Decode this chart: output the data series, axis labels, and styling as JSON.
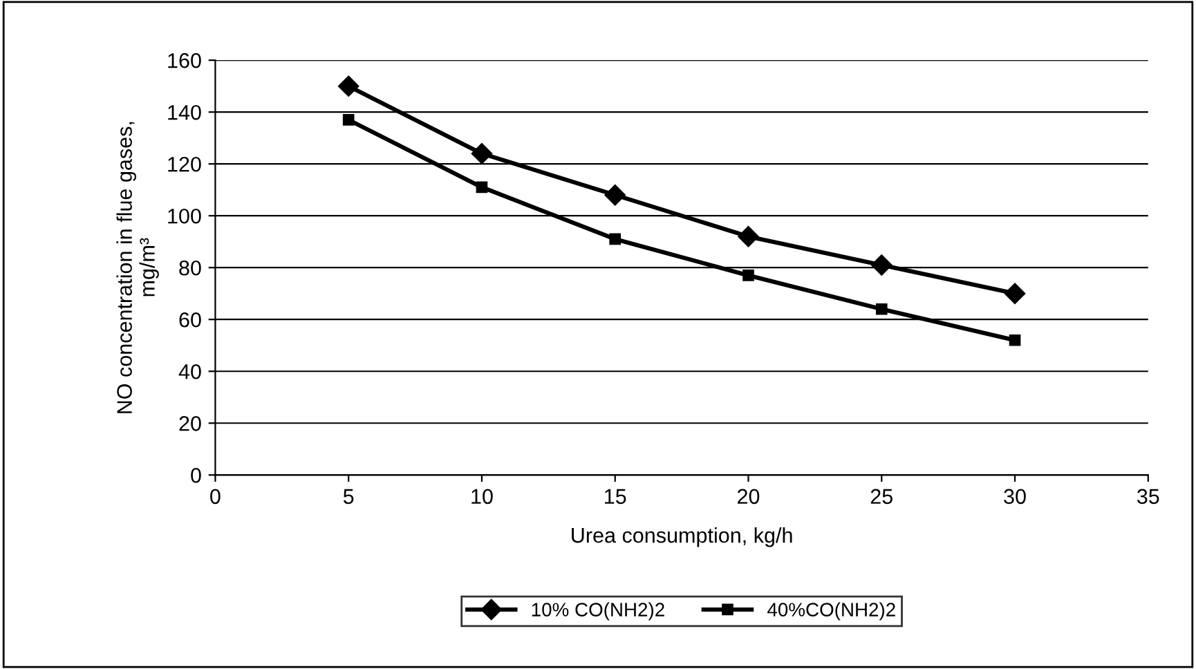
{
  "chart_data": {
    "type": "line",
    "xlabel": "Urea consumption, kg/h",
    "ylabel": "NO concentration in flue gases,\nmg/m³",
    "x": [
      5,
      10,
      15,
      20,
      25,
      30
    ],
    "series": [
      {
        "name": "10% CO(NH2)2",
        "color": "#000000",
        "marker": "diamond",
        "values": [
          150,
          124,
          108,
          92,
          81,
          70
        ]
      },
      {
        "name": "40%CO(NH2)2",
        "color": "#000000",
        "marker": "square",
        "values": [
          137,
          111,
          91,
          77,
          64,
          52
        ]
      }
    ],
    "xlim": [
      0,
      35
    ],
    "xticks": [
      0,
      5,
      10,
      15,
      20,
      25,
      30,
      35
    ],
    "ylim": [
      0,
      160
    ],
    "yticks": [
      0,
      20,
      40,
      60,
      80,
      100,
      120,
      140,
      160
    ],
    "grid": "y",
    "legend": "bottom",
    "line_style": "solid"
  }
}
